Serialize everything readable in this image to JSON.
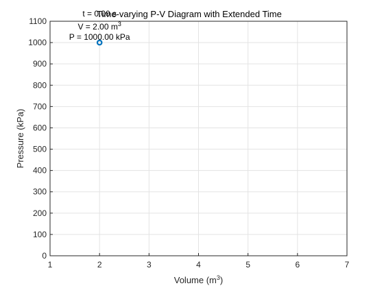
{
  "chart_data": {
    "type": "scatter",
    "title": "Time-varying P-V Diagram with Extended Time",
    "xlabel": "Volume (m",
    "xlabel_superscript": "3",
    "xlabel_suffix": ")",
    "ylabel": "Pressure (kPa)",
    "xlim": [
      1,
      7
    ],
    "ylim": [
      0,
      1100
    ],
    "xticks": [
      1,
      2,
      3,
      4,
      5,
      6,
      7
    ],
    "yticks": [
      0,
      100,
      200,
      300,
      400,
      500,
      600,
      700,
      800,
      900,
      1000,
      1100
    ],
    "grid": true,
    "points": [
      {
        "x": 2.0,
        "y": 1000.0
      }
    ],
    "marker_color": "#0072BD",
    "annotations": {
      "time": "t = 0.00 s",
      "volume": "V = 2.00 m",
      "volume_superscript": "3",
      "pressure": "P = 1000.00 kPa"
    }
  }
}
